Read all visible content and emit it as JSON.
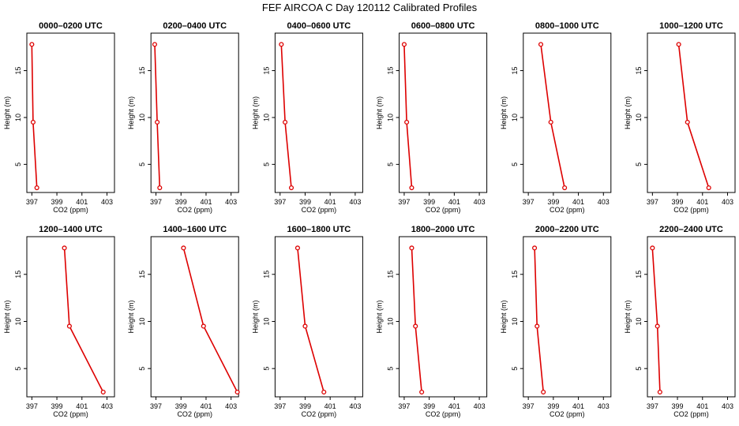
{
  "title": "FEF AIRCOA C  Day 120112  Calibrated Profiles",
  "colors": {
    "line": "#dd0000",
    "axis": "#000000",
    "background": "#ffffff"
  },
  "chart_data": {
    "type": "line",
    "xlabel": "CO2 (ppm)",
    "ylabel": "Height (m)",
    "xlim": [
      396.6,
      403.6
    ],
    "ylim": [
      2,
      19
    ],
    "xticks": [
      397,
      399,
      401,
      403
    ],
    "yticks": [
      5,
      10,
      15
    ],
    "heights": [
      2.5,
      9.5,
      17.8
    ],
    "panels": [
      {
        "title": "0000–0200 UTC",
        "values": [
          397.4,
          397.1,
          397.0
        ]
      },
      {
        "title": "0200–0400 UTC",
        "values": [
          397.3,
          397.1,
          396.9
        ]
      },
      {
        "title": "0400–0600 UTC",
        "values": [
          397.9,
          397.4,
          397.1
        ]
      },
      {
        "title": "0600–0800 UTC",
        "values": [
          397.6,
          397.2,
          397.0
        ]
      },
      {
        "title": "0800–1000 UTC",
        "values": [
          399.9,
          398.8,
          398.0
        ]
      },
      {
        "title": "1000–1200 UTC",
        "values": [
          401.5,
          399.8,
          399.1
        ]
      },
      {
        "title": "1200–1400 UTC",
        "values": [
          402.7,
          400.0,
          399.6
        ]
      },
      {
        "title": "1400–1600 UTC",
        "values": [
          403.5,
          400.8,
          399.2
        ]
      },
      {
        "title": "1600–1800 UTC",
        "values": [
          400.5,
          399.0,
          398.4
        ]
      },
      {
        "title": "1800–2000 UTC",
        "values": [
          398.4,
          397.9,
          397.6
        ]
      },
      {
        "title": "2000–2200 UTC",
        "values": [
          398.2,
          397.7,
          397.5
        ]
      },
      {
        "title": "2200–2400 UTC",
        "values": [
          397.6,
          397.4,
          397.0
        ]
      }
    ]
  }
}
